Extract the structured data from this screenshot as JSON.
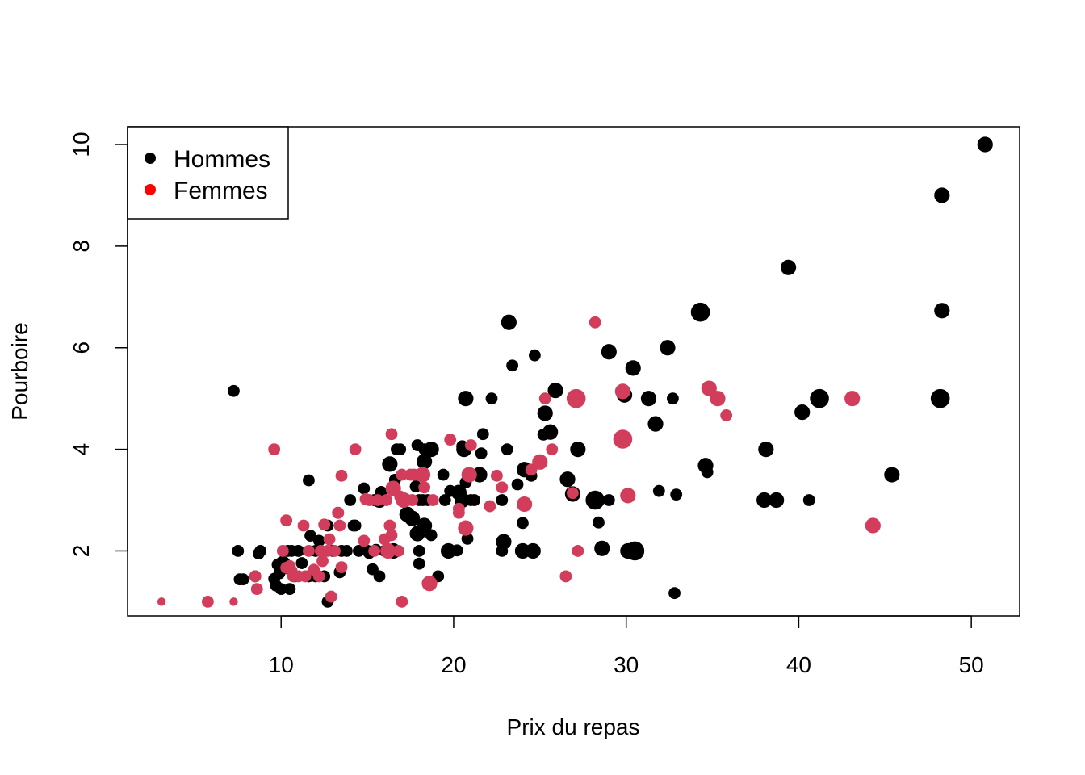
{
  "chart_data": {
    "type": "scatter",
    "title": "",
    "xlabel": "Prix du repas",
    "ylabel": "Pourboire",
    "xlim": [
      1.1,
      52.8
    ],
    "ylim": [
      0.72,
      10.35
    ],
    "xticks": [
      10,
      20,
      30,
      40,
      50
    ],
    "yticks": [
      2,
      4,
      6,
      8,
      10
    ],
    "grid": false,
    "legend": {
      "placement": "top-left",
      "entries": [
        {
          "label": "Hommes",
          "color": "#000000"
        },
        {
          "label": "Femmes",
          "color": "#ff0000"
        }
      ]
    },
    "point_size_note": "marker size varies with party size",
    "series": [
      {
        "name": "Hommes",
        "color": "#000000",
        "points": [
          [
            7.25,
            5.15,
            2
          ],
          [
            7.5,
            2.0,
            2
          ],
          [
            7.6,
            1.44,
            2
          ],
          [
            7.8,
            1.44,
            2
          ],
          [
            8.5,
            1.5,
            2
          ],
          [
            8.7,
            1.95,
            2
          ],
          [
            8.8,
            2.0,
            2
          ],
          [
            9.6,
            1.45,
            2
          ],
          [
            9.7,
            1.32,
            2
          ],
          [
            9.8,
            1.73,
            2
          ],
          [
            9.9,
            1.56,
            2
          ],
          [
            10.0,
            1.25,
            2
          ],
          [
            10.1,
            1.75,
            3
          ],
          [
            10.3,
            1.66,
            2
          ],
          [
            10.4,
            2.0,
            2
          ],
          [
            10.5,
            1.25,
            2
          ],
          [
            10.6,
            2.0,
            2
          ],
          [
            10.8,
            1.5,
            2
          ],
          [
            11.0,
            2.0,
            2
          ],
          [
            11.2,
            1.76,
            2
          ],
          [
            11.6,
            3.39,
            2
          ],
          [
            11.7,
            2.3,
            2
          ],
          [
            11.6,
            1.5,
            2
          ],
          [
            12.0,
            1.5,
            2
          ],
          [
            12.0,
            2.0,
            2
          ],
          [
            12.2,
            2.2,
            2
          ],
          [
            12.5,
            1.5,
            2
          ],
          [
            12.7,
            1.0,
            2
          ],
          [
            12.7,
            2.5,
            2
          ],
          [
            13.0,
            2.0,
            2
          ],
          [
            13.3,
            2.75,
            2
          ],
          [
            13.4,
            1.58,
            2
          ],
          [
            13.5,
            2.0,
            2
          ],
          [
            13.8,
            2.0,
            2
          ],
          [
            14.0,
            3.0,
            2
          ],
          [
            14.2,
            2.5,
            2
          ],
          [
            14.3,
            2.5,
            2
          ],
          [
            14.5,
            2.0,
            2
          ],
          [
            14.8,
            3.23,
            2
          ],
          [
            15.0,
            2.0,
            2
          ],
          [
            15.0,
            2.0,
            2
          ],
          [
            15.1,
            1.96,
            2
          ],
          [
            15.3,
            1.64,
            2
          ],
          [
            15.4,
            3.0,
            2
          ],
          [
            15.5,
            2.02,
            2
          ],
          [
            15.7,
            3.0,
            3
          ],
          [
            15.8,
            3.16,
            2
          ],
          [
            15.7,
            1.5,
            2
          ],
          [
            16.0,
            2.0,
            2
          ],
          [
            16.3,
            3.71,
            3
          ],
          [
            16.5,
            2.0,
            3
          ],
          [
            16.6,
            3.4,
            2
          ],
          [
            16.7,
            4.0,
            2
          ],
          [
            16.9,
            4.0,
            2
          ],
          [
            17.3,
            3.0,
            2
          ],
          [
            17.3,
            2.72,
            3
          ],
          [
            17.6,
            2.64,
            3
          ],
          [
            17.8,
            3.27,
            2
          ],
          [
            17.9,
            2.34,
            3
          ],
          [
            18.0,
            1.75,
            2
          ],
          [
            18.0,
            2.0,
            2
          ],
          [
            17.9,
            4.08,
            2
          ],
          [
            18.0,
            3.0,
            2
          ],
          [
            18.2,
            3.0,
            2
          ],
          [
            18.3,
            3.76,
            3
          ],
          [
            18.3,
            4.0,
            2
          ],
          [
            18.3,
            2.5,
            3
          ],
          [
            18.5,
            3.0,
            2
          ],
          [
            18.7,
            2.31,
            2
          ],
          [
            18.7,
            4.0,
            3
          ],
          [
            19.1,
            1.5,
            2
          ],
          [
            19.4,
            3.5,
            2
          ],
          [
            19.5,
            3.0,
            2
          ],
          [
            19.8,
            3.18,
            2
          ],
          [
            19.7,
            2.0,
            3
          ],
          [
            20.2,
            2.01,
            2
          ],
          [
            20.3,
            3.15,
            3
          ],
          [
            20.5,
            3.0,
            3
          ],
          [
            20.5,
            4.06,
            2
          ],
          [
            20.6,
            4.0,
            3
          ],
          [
            20.7,
            3.35,
            2
          ],
          [
            20.7,
            5.0,
            3
          ],
          [
            20.8,
            2.24,
            2
          ],
          [
            21.0,
            3.0,
            2
          ],
          [
            21.2,
            3.0,
            2
          ],
          [
            21.5,
            3.5,
            3
          ],
          [
            21.6,
            3.92,
            2
          ],
          [
            21.7,
            4.3,
            2
          ],
          [
            22.2,
            5.0,
            2
          ],
          [
            22.8,
            2.0,
            2
          ],
          [
            22.8,
            3.0,
            2
          ],
          [
            22.9,
            2.18,
            3
          ],
          [
            23.1,
            4.0,
            2
          ],
          [
            23.2,
            6.5,
            3
          ],
          [
            23.4,
            5.65,
            2
          ],
          [
            23.7,
            3.31,
            2
          ],
          [
            24.0,
            2.0,
            3
          ],
          [
            24.0,
            2.55,
            2
          ],
          [
            24.1,
            3.6,
            3
          ],
          [
            24.5,
            3.48,
            2
          ],
          [
            24.6,
            2.0,
            3
          ],
          [
            24.7,
            5.85,
            2
          ],
          [
            25.2,
            4.29,
            2
          ],
          [
            25.3,
            4.71,
            3
          ],
          [
            25.6,
            4.34,
            3
          ],
          [
            25.9,
            5.16,
            3
          ],
          [
            26.6,
            3.41,
            3
          ],
          [
            26.9,
            3.12,
            3
          ],
          [
            27.2,
            4.0,
            3
          ],
          [
            28.2,
            3.0,
            4
          ],
          [
            28.4,
            2.56,
            2
          ],
          [
            28.6,
            2.05,
            3
          ],
          [
            29.0,
            5.92,
            3
          ],
          [
            29.0,
            3.0,
            2
          ],
          [
            29.9,
            5.07,
            3
          ],
          [
            30.1,
            2.0,
            3
          ],
          [
            30.4,
            5.6,
            3
          ],
          [
            30.5,
            2.0,
            4
          ],
          [
            31.3,
            5.0,
            3
          ],
          [
            31.7,
            4.5,
            3
          ],
          [
            31.9,
            3.18,
            2
          ],
          [
            32.4,
            6.0,
            3
          ],
          [
            32.7,
            5.0,
            2
          ],
          [
            32.8,
            1.17,
            2
          ],
          [
            32.9,
            3.11,
            2
          ],
          [
            34.3,
            6.7,
            4
          ],
          [
            34.6,
            3.68,
            3
          ],
          [
            34.7,
            3.55,
            2
          ],
          [
            38.0,
            3.0,
            3
          ],
          [
            38.1,
            4.0,
            3
          ],
          [
            38.7,
            3.0,
            3
          ],
          [
            39.4,
            7.58,
            3
          ],
          [
            40.2,
            4.73,
            3
          ],
          [
            40.6,
            3.0,
            2
          ],
          [
            41.2,
            5.0,
            4
          ],
          [
            45.4,
            3.5,
            3
          ],
          [
            48.2,
            5.0,
            4
          ],
          [
            48.3,
            6.73,
            3
          ],
          [
            48.3,
            9.0,
            3
          ],
          [
            50.8,
            10.0,
            3
          ]
        ]
      },
      {
        "name": "Femmes",
        "color": "#d33d5c",
        "points": [
          [
            3.07,
            1.0,
            1
          ],
          [
            5.75,
            1.0,
            2
          ],
          [
            7.25,
            1.0,
            1
          ],
          [
            8.5,
            1.5,
            2
          ],
          [
            8.6,
            1.25,
            2
          ],
          [
            9.6,
            4.0,
            2
          ],
          [
            10.1,
            2.0,
            2
          ],
          [
            10.3,
            2.6,
            2
          ],
          [
            10.3,
            1.67,
            2
          ],
          [
            10.5,
            1.7,
            2
          ],
          [
            10.6,
            1.61,
            2
          ],
          [
            10.7,
            1.5,
            2
          ],
          [
            11.0,
            1.5,
            2
          ],
          [
            11.3,
            2.5,
            2
          ],
          [
            11.4,
            1.5,
            2
          ],
          [
            11.6,
            2.0,
            2
          ],
          [
            11.9,
            1.63,
            2
          ],
          [
            12.2,
            1.5,
            2
          ],
          [
            12.3,
            2.0,
            2
          ],
          [
            12.4,
            1.8,
            2
          ],
          [
            12.5,
            2.52,
            2
          ],
          [
            12.7,
            2.0,
            2
          ],
          [
            12.8,
            2.23,
            2
          ],
          [
            12.9,
            1.1,
            2
          ],
          [
            13.1,
            2.0,
            2
          ],
          [
            13.3,
            2.75,
            2
          ],
          [
            13.4,
            2.5,
            2
          ],
          [
            13.5,
            1.68,
            2
          ],
          [
            13.5,
            3.48,
            2
          ],
          [
            14.3,
            4.0,
            2
          ],
          [
            14.8,
            2.2,
            2
          ],
          [
            14.9,
            3.02,
            2
          ],
          [
            15.1,
            3.0,
            2
          ],
          [
            15.4,
            2.0,
            2
          ],
          [
            15.6,
            3.0,
            2
          ],
          [
            16.0,
            2.23,
            2
          ],
          [
            16.1,
            3.0,
            2
          ],
          [
            16.2,
            2.0,
            3
          ],
          [
            16.3,
            2.5,
            2
          ],
          [
            16.4,
            4.3,
            2
          ],
          [
            16.4,
            2.31,
            2
          ],
          [
            16.5,
            3.23,
            3
          ],
          [
            16.8,
            2.0,
            2
          ],
          [
            16.9,
            3.07,
            2
          ],
          [
            17.0,
            1.0,
            2
          ],
          [
            17.0,
            3.5,
            2
          ],
          [
            17.1,
            3.0,
            3
          ],
          [
            17.5,
            3.5,
            2
          ],
          [
            17.7,
            3.5,
            2
          ],
          [
            17.6,
            3.0,
            2
          ],
          [
            18.2,
            3.5,
            3
          ],
          [
            18.3,
            3.25,
            2
          ],
          [
            18.6,
            1.36,
            3
          ],
          [
            18.8,
            3.0,
            2
          ],
          [
            19.8,
            4.19,
            2
          ],
          [
            20.3,
            2.75,
            2
          ],
          [
            20.3,
            2.83,
            2
          ],
          [
            20.7,
            2.45,
            3
          ],
          [
            20.9,
            3.5,
            3
          ],
          [
            21.0,
            4.08,
            2
          ],
          [
            22.1,
            2.88,
            2
          ],
          [
            22.5,
            3.48,
            2
          ],
          [
            22.8,
            3.25,
            2
          ],
          [
            24.1,
            2.92,
            3
          ],
          [
            24.5,
            3.6,
            2
          ],
          [
            25.0,
            3.75,
            3
          ],
          [
            25.3,
            5.0,
            2
          ],
          [
            25.7,
            4.0,
            2
          ],
          [
            26.5,
            1.5,
            2
          ],
          [
            26.9,
            3.14,
            2
          ],
          [
            27.1,
            5.0,
            4
          ],
          [
            27.2,
            2.0,
            2
          ],
          [
            28.2,
            6.5,
            2
          ],
          [
            29.8,
            5.14,
            3
          ],
          [
            29.8,
            4.2,
            4
          ],
          [
            30.1,
            3.09,
            3
          ],
          [
            34.8,
            5.2,
            3
          ],
          [
            35.3,
            5.0,
            3
          ],
          [
            35.8,
            4.67,
            2
          ],
          [
            43.1,
            5.0,
            3
          ],
          [
            44.3,
            2.5,
            3
          ]
        ]
      }
    ]
  }
}
